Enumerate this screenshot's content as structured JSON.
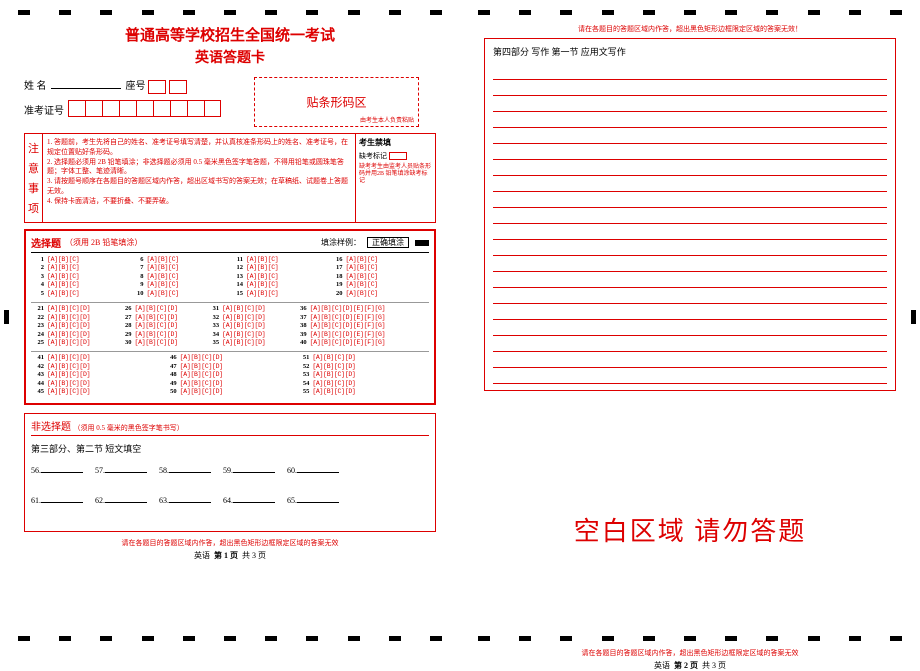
{
  "title_main": "普通高等学校招生全国统一考试",
  "title_sub": "英语答题卡",
  "labels": {
    "name": "姓 名",
    "seat": "座号",
    "exam_id": "准考证号",
    "barcode": "贴条形码区",
    "barcode_note": "由考生本人负责粘贴"
  },
  "notice": {
    "header_chars": [
      "注",
      "意",
      "事",
      "项"
    ],
    "lines": [
      "1. 答题前，考生先将自己的姓名、准考证号填写清楚，并认真核准条形码上的姓名、准考证号，在规定位置贴好条形码。",
      "2. 选择题必须用 2B 铅笔填涂；非选择题必须用 0.5 毫米黑色签字笔答题，不得用铅笔或圆珠笔答题；字体工整、笔迹清晰。",
      "3. 请按题号顺序在各题目的答题区域内作答，超出区域书写的答案无效；在草稿纸、试题卷上答题无效。",
      "4. 保持卡面清洁，不要折叠、不要弄破。"
    ],
    "right_header": "考生禁填",
    "absent_label": "缺考标记",
    "right_note": "缺考考生由监考人员贴条形码并用2B 铅笔填涂缺考标记"
  },
  "mc": {
    "title": "选择题",
    "sub": "（须用 2B 铅笔填涂）",
    "fill_label": "填涂样例：",
    "fill_correct": "正确填涂",
    "groups3": [
      {
        "start": 1,
        "end": 5
      },
      {
        "start": 6,
        "end": 10
      },
      {
        "start": 11,
        "end": 15
      },
      {
        "start": 16,
        "end": 20
      }
    ],
    "opts3": "[A][B][C]",
    "groups4": [
      {
        "start": 21,
        "end": 25
      },
      {
        "start": 26,
        "end": 30
      },
      {
        "start": 31,
        "end": 35
      }
    ],
    "opts4": "[A][B][C][D]",
    "groups7": [
      {
        "start": 36,
        "end": 40
      }
    ],
    "opts7": "[A][B][C][D][E][F][G]",
    "groups4b": [
      {
        "start": 41,
        "end": 45
      },
      {
        "start": 46,
        "end": 50
      },
      {
        "start": 51,
        "end": 55
      }
    ]
  },
  "open": {
    "title": "非选择题",
    "sub": "（须用 0.5 毫米的黑色签字笔书写）",
    "section_label": "第三部分、第二节  短文填空",
    "blanks": [
      56,
      57,
      58,
      59,
      60,
      61,
      62,
      63,
      64,
      65
    ]
  },
  "footer_note_1": "请在各题目的答题区域内作答，超出黑色矩形边框限定区域的答案无效",
  "page_fmt": {
    "subj": "英语",
    "p1": "第 1 页",
    "p2": "第 2 页",
    "total": "共 3 页"
  },
  "p2": {
    "top_note": "请在各题目的答题区域内作答，超出黑色矩形边框限定区域的答案无效！",
    "essay_title": "第四部分 写作    第一节  应用文写作",
    "num_lines": 20,
    "blank_warning": "空白区域 请勿答题",
    "footer_note": "请在各题目的答题区域内作答，超出黑色矩形边框限定区域的答案无效"
  },
  "colors": {
    "red": "#d00000",
    "black": "#000000"
  }
}
